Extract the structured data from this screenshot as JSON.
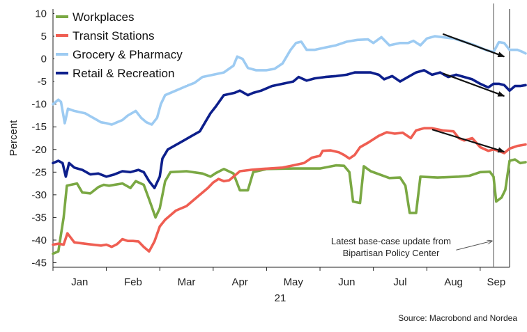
{
  "chart_data": {
    "type": "line",
    "ylabel": "Percent",
    "ylim": [
      -46,
      11
    ],
    "yticks": [
      10,
      5,
      0,
      -5,
      -10,
      -15,
      -20,
      -25,
      -30,
      -35,
      -40,
      -45
    ],
    "xlim": [
      0,
      8.55
    ],
    "xticks": [
      {
        "label": "Jan",
        "x": 0.5
      },
      {
        "label": "Feb",
        "x": 1.5
      },
      {
        "label": "Mar",
        "x": 2.5
      },
      {
        "label": "Apr",
        "x": 3.5
      },
      {
        "label": "May",
        "x": 4.5
      },
      {
        "label": "Jun",
        "x": 5.5
      },
      {
        "label": "Jul",
        "x": 6.5
      },
      {
        "label": "Aug",
        "x": 7.5
      },
      {
        "label": "Sep",
        "x": 8.3
      }
    ],
    "year_label": "21",
    "vline_x": 8.25,
    "annotation": {
      "lines": [
        "Latest base-case update from",
        "Bipartisan Policy Center"
      ],
      "text_x": 6.33,
      "text_y": -40.3,
      "arrow_from": [
        7.55,
        -42.2
      ],
      "arrow_to": [
        8.22,
        -40.2
      ]
    },
    "trend_arrows": [
      {
        "from": [
          7.3,
          5.5
        ],
        "to": [
          8.45,
          0.5
        ]
      },
      {
        "from": [
          7.3,
          -3.2
        ],
        "to": [
          8.45,
          -8.2
        ]
      },
      {
        "from": [
          7.1,
          -15.6
        ],
        "to": [
          8.45,
          -20.5
        ]
      }
    ],
    "series": [
      {
        "name": "Workplaces",
        "color": "#7aa843",
        "points": [
          [
            0,
            -43
          ],
          [
            0.1,
            -42.5
          ],
          [
            0.2,
            -35
          ],
          [
            0.26,
            -28
          ],
          [
            0.45,
            -27.5
          ],
          [
            0.55,
            -29.5
          ],
          [
            0.7,
            -29.7
          ],
          [
            0.85,
            -28.3
          ],
          [
            0.95,
            -27.8
          ],
          [
            1.05,
            -28
          ],
          [
            1.3,
            -27.5
          ],
          [
            1.45,
            -28.5
          ],
          [
            1.55,
            -27
          ],
          [
            1.7,
            -27.8
          ],
          [
            1.8,
            -31
          ],
          [
            1.92,
            -35
          ],
          [
            2.0,
            -33
          ],
          [
            2.1,
            -27
          ],
          [
            2.2,
            -25
          ],
          [
            2.5,
            -24.8
          ],
          [
            2.8,
            -25.3
          ],
          [
            2.95,
            -26
          ],
          [
            3.05,
            -25.2
          ],
          [
            3.2,
            -24.3
          ],
          [
            3.38,
            -25.3
          ],
          [
            3.5,
            -29
          ],
          [
            3.65,
            -29
          ],
          [
            3.75,
            -25
          ],
          [
            4.0,
            -24.3
          ],
          [
            4.5,
            -24.2
          ],
          [
            5.0,
            -24.2
          ],
          [
            5.3,
            -23.5
          ],
          [
            5.45,
            -23.6
          ],
          [
            5.55,
            -25
          ],
          [
            5.62,
            -31.5
          ],
          [
            5.75,
            -31.8
          ],
          [
            5.82,
            -23.7
          ],
          [
            5.95,
            -24.8
          ],
          [
            6.3,
            -26.3
          ],
          [
            6.5,
            -26.2
          ],
          [
            6.6,
            -28
          ],
          [
            6.68,
            -34
          ],
          [
            6.8,
            -34
          ],
          [
            6.88,
            -26
          ],
          [
            7.2,
            -26.2
          ],
          [
            7.6,
            -26
          ],
          [
            7.8,
            -25.8
          ],
          [
            8.0,
            -25
          ],
          [
            8.18,
            -24.9
          ],
          [
            8.25,
            -26
          ],
          [
            8.3,
            -31.5
          ],
          [
            8.4,
            -30.6
          ],
          [
            8.47,
            -28.9
          ],
          [
            8.55,
            -22.5
          ],
          [
            8.65,
            -22.2
          ],
          [
            8.75,
            -23
          ],
          [
            8.85,
            -22.8
          ]
        ]
      },
      {
        "name": "Transit Stations",
        "color": "#ef5e52",
        "points": [
          [
            0,
            -41
          ],
          [
            0.1,
            -40.8
          ],
          [
            0.2,
            -41
          ],
          [
            0.27,
            -38.5
          ],
          [
            0.4,
            -40.5
          ],
          [
            0.6,
            -40.8
          ],
          [
            0.9,
            -41.2
          ],
          [
            1.0,
            -41
          ],
          [
            1.1,
            -41.5
          ],
          [
            1.2,
            -40.9
          ],
          [
            1.3,
            -39.8
          ],
          [
            1.4,
            -40.2
          ],
          [
            1.5,
            -40.2
          ],
          [
            1.6,
            -40.3
          ],
          [
            1.7,
            -41.5
          ],
          [
            1.8,
            -42.5
          ],
          [
            1.9,
            -40.3
          ],
          [
            2.0,
            -37
          ],
          [
            2.1,
            -35.5
          ],
          [
            2.3,
            -33.5
          ],
          [
            2.5,
            -32.5
          ],
          [
            2.7,
            -30.5
          ],
          [
            2.9,
            -28.5
          ],
          [
            3.0,
            -27.3
          ],
          [
            3.1,
            -26.5
          ],
          [
            3.2,
            -27
          ],
          [
            3.3,
            -26.8
          ],
          [
            3.4,
            -25.8
          ],
          [
            3.5,
            -24.8
          ],
          [
            3.7,
            -24.5
          ],
          [
            3.9,
            -24.3
          ],
          [
            4.3,
            -24
          ],
          [
            4.5,
            -23.5
          ],
          [
            4.7,
            -23
          ],
          [
            4.85,
            -21.8
          ],
          [
            5.0,
            -21.4
          ],
          [
            5.05,
            -20.3
          ],
          [
            5.2,
            -20.2
          ],
          [
            5.35,
            -20.6
          ],
          [
            5.45,
            -21.2
          ],
          [
            5.55,
            -22
          ],
          [
            5.65,
            -21.2
          ],
          [
            5.75,
            -19.5
          ],
          [
            5.9,
            -18.5
          ],
          [
            6.1,
            -17
          ],
          [
            6.25,
            -16.2
          ],
          [
            6.4,
            -16.5
          ],
          [
            6.55,
            -16.3
          ],
          [
            6.7,
            -17.5
          ],
          [
            6.8,
            -15.8
          ],
          [
            6.95,
            -15.3
          ],
          [
            7.1,
            -15.3
          ],
          [
            7.3,
            -15.8
          ],
          [
            7.5,
            -16
          ],
          [
            7.6,
            -17.5
          ],
          [
            7.7,
            -18
          ],
          [
            7.85,
            -17.5
          ],
          [
            8.0,
            -19.5
          ],
          [
            8.15,
            -20.3
          ],
          [
            8.25,
            -20
          ],
          [
            8.35,
            -20.3
          ],
          [
            8.45,
            -20.8
          ],
          [
            8.55,
            -19.8
          ],
          [
            8.7,
            -19.2
          ],
          [
            8.85,
            -18.9
          ]
        ]
      },
      {
        "name": "Grocery & Pharmacy",
        "color": "#9dcbf2",
        "points": [
          [
            0,
            -10
          ],
          [
            0.1,
            -9
          ],
          [
            0.15,
            -9.5
          ],
          [
            0.22,
            -14.2
          ],
          [
            0.28,
            -11
          ],
          [
            0.4,
            -11.5
          ],
          [
            0.6,
            -12
          ],
          [
            0.75,
            -13
          ],
          [
            0.9,
            -14
          ],
          [
            1.0,
            -14.2
          ],
          [
            1.1,
            -14.5
          ],
          [
            1.2,
            -14
          ],
          [
            1.3,
            -13.5
          ],
          [
            1.4,
            -12.5
          ],
          [
            1.55,
            -11.5
          ],
          [
            1.65,
            -13
          ],
          [
            1.75,
            -14
          ],
          [
            1.85,
            -14.5
          ],
          [
            1.95,
            -13
          ],
          [
            2.02,
            -10
          ],
          [
            2.1,
            -8
          ],
          [
            2.3,
            -7
          ],
          [
            2.5,
            -6
          ],
          [
            2.65,
            -5.3
          ],
          [
            2.8,
            -4
          ],
          [
            3.0,
            -3.5
          ],
          [
            3.2,
            -3
          ],
          [
            3.38,
            -1.5
          ],
          [
            3.45,
            0.5
          ],
          [
            3.55,
            0
          ],
          [
            3.65,
            -2
          ],
          [
            3.8,
            -2.5
          ],
          [
            4.0,
            -2.5
          ],
          [
            4.15,
            -2.2
          ],
          [
            4.3,
            -1
          ],
          [
            4.45,
            2
          ],
          [
            4.55,
            3.5
          ],
          [
            4.65,
            3.8
          ],
          [
            4.75,
            2
          ],
          [
            4.9,
            2
          ],
          [
            5.1,
            2.5
          ],
          [
            5.3,
            3
          ],
          [
            5.5,
            3.8
          ],
          [
            5.7,
            4.2
          ],
          [
            5.9,
            4.3
          ],
          [
            6.0,
            3.5
          ],
          [
            6.15,
            4.8
          ],
          [
            6.3,
            3
          ],
          [
            6.5,
            3.5
          ],
          [
            6.65,
            3.5
          ],
          [
            6.75,
            4
          ],
          [
            6.88,
            3
          ],
          [
            7.0,
            4.5
          ],
          [
            7.15,
            5
          ],
          [
            7.3,
            4.8
          ],
          [
            7.5,
            4.5
          ],
          [
            7.7,
            3.8
          ],
          [
            7.9,
            3
          ],
          [
            8.1,
            2
          ],
          [
            8.25,
            1.5
          ],
          [
            8.35,
            3.7
          ],
          [
            8.45,
            3.5
          ],
          [
            8.55,
            2
          ],
          [
            8.7,
            2
          ],
          [
            8.8,
            1.5
          ],
          [
            8.85,
            1.2
          ]
        ]
      },
      {
        "name": "Retail & Recreation",
        "color": "#0d1f8c",
        "points": [
          [
            0,
            -23
          ],
          [
            0.1,
            -22.5
          ],
          [
            0.18,
            -23
          ],
          [
            0.24,
            -26
          ],
          [
            0.3,
            -23
          ],
          [
            0.4,
            -24
          ],
          [
            0.55,
            -24.5
          ],
          [
            0.7,
            -25.5
          ],
          [
            0.85,
            -25.3
          ],
          [
            1.0,
            -26
          ],
          [
            1.15,
            -25.5
          ],
          [
            1.3,
            -24.8
          ],
          [
            1.45,
            -25
          ],
          [
            1.6,
            -24.5
          ],
          [
            1.7,
            -25
          ],
          [
            1.8,
            -27
          ],
          [
            1.9,
            -28.5
          ],
          [
            2.0,
            -26
          ],
          [
            2.05,
            -22
          ],
          [
            2.15,
            -20
          ],
          [
            2.3,
            -19
          ],
          [
            2.45,
            -18
          ],
          [
            2.6,
            -17
          ],
          [
            2.75,
            -16
          ],
          [
            2.85,
            -14
          ],
          [
            2.95,
            -12
          ],
          [
            3.05,
            -10.5
          ],
          [
            3.2,
            -8
          ],
          [
            3.4,
            -7.5
          ],
          [
            3.5,
            -7
          ],
          [
            3.65,
            -8
          ],
          [
            3.75,
            -7.5
          ],
          [
            3.9,
            -7
          ],
          [
            4.1,
            -6
          ],
          [
            4.3,
            -5.5
          ],
          [
            4.5,
            -5
          ],
          [
            4.6,
            -4
          ],
          [
            4.75,
            -4.8
          ],
          [
            4.9,
            -4.3
          ],
          [
            5.1,
            -4
          ],
          [
            5.3,
            -3.8
          ],
          [
            5.5,
            -3.5
          ],
          [
            5.65,
            -3
          ],
          [
            5.8,
            -3
          ],
          [
            5.95,
            -3
          ],
          [
            6.1,
            -3.5
          ],
          [
            6.2,
            -4.5
          ],
          [
            6.35,
            -3.8
          ],
          [
            6.5,
            -5
          ],
          [
            6.65,
            -4
          ],
          [
            6.8,
            -3
          ],
          [
            6.95,
            -2.5
          ],
          [
            7.1,
            -3.5
          ],
          [
            7.25,
            -3
          ],
          [
            7.4,
            -4
          ],
          [
            7.55,
            -3.5
          ],
          [
            7.7,
            -4
          ],
          [
            7.85,
            -4.5
          ],
          [
            8.0,
            -5.5
          ],
          [
            8.15,
            -6.3
          ],
          [
            8.25,
            -5.5
          ],
          [
            8.35,
            -5.5
          ],
          [
            8.45,
            -5.8
          ],
          [
            8.55,
            -7
          ],
          [
            8.65,
            -6
          ],
          [
            8.75,
            -6
          ],
          [
            8.85,
            -5.8
          ]
        ]
      }
    ],
    "legend_position": "top-left",
    "grid": false,
    "source": "Source: Macrobond and Nordea"
  }
}
